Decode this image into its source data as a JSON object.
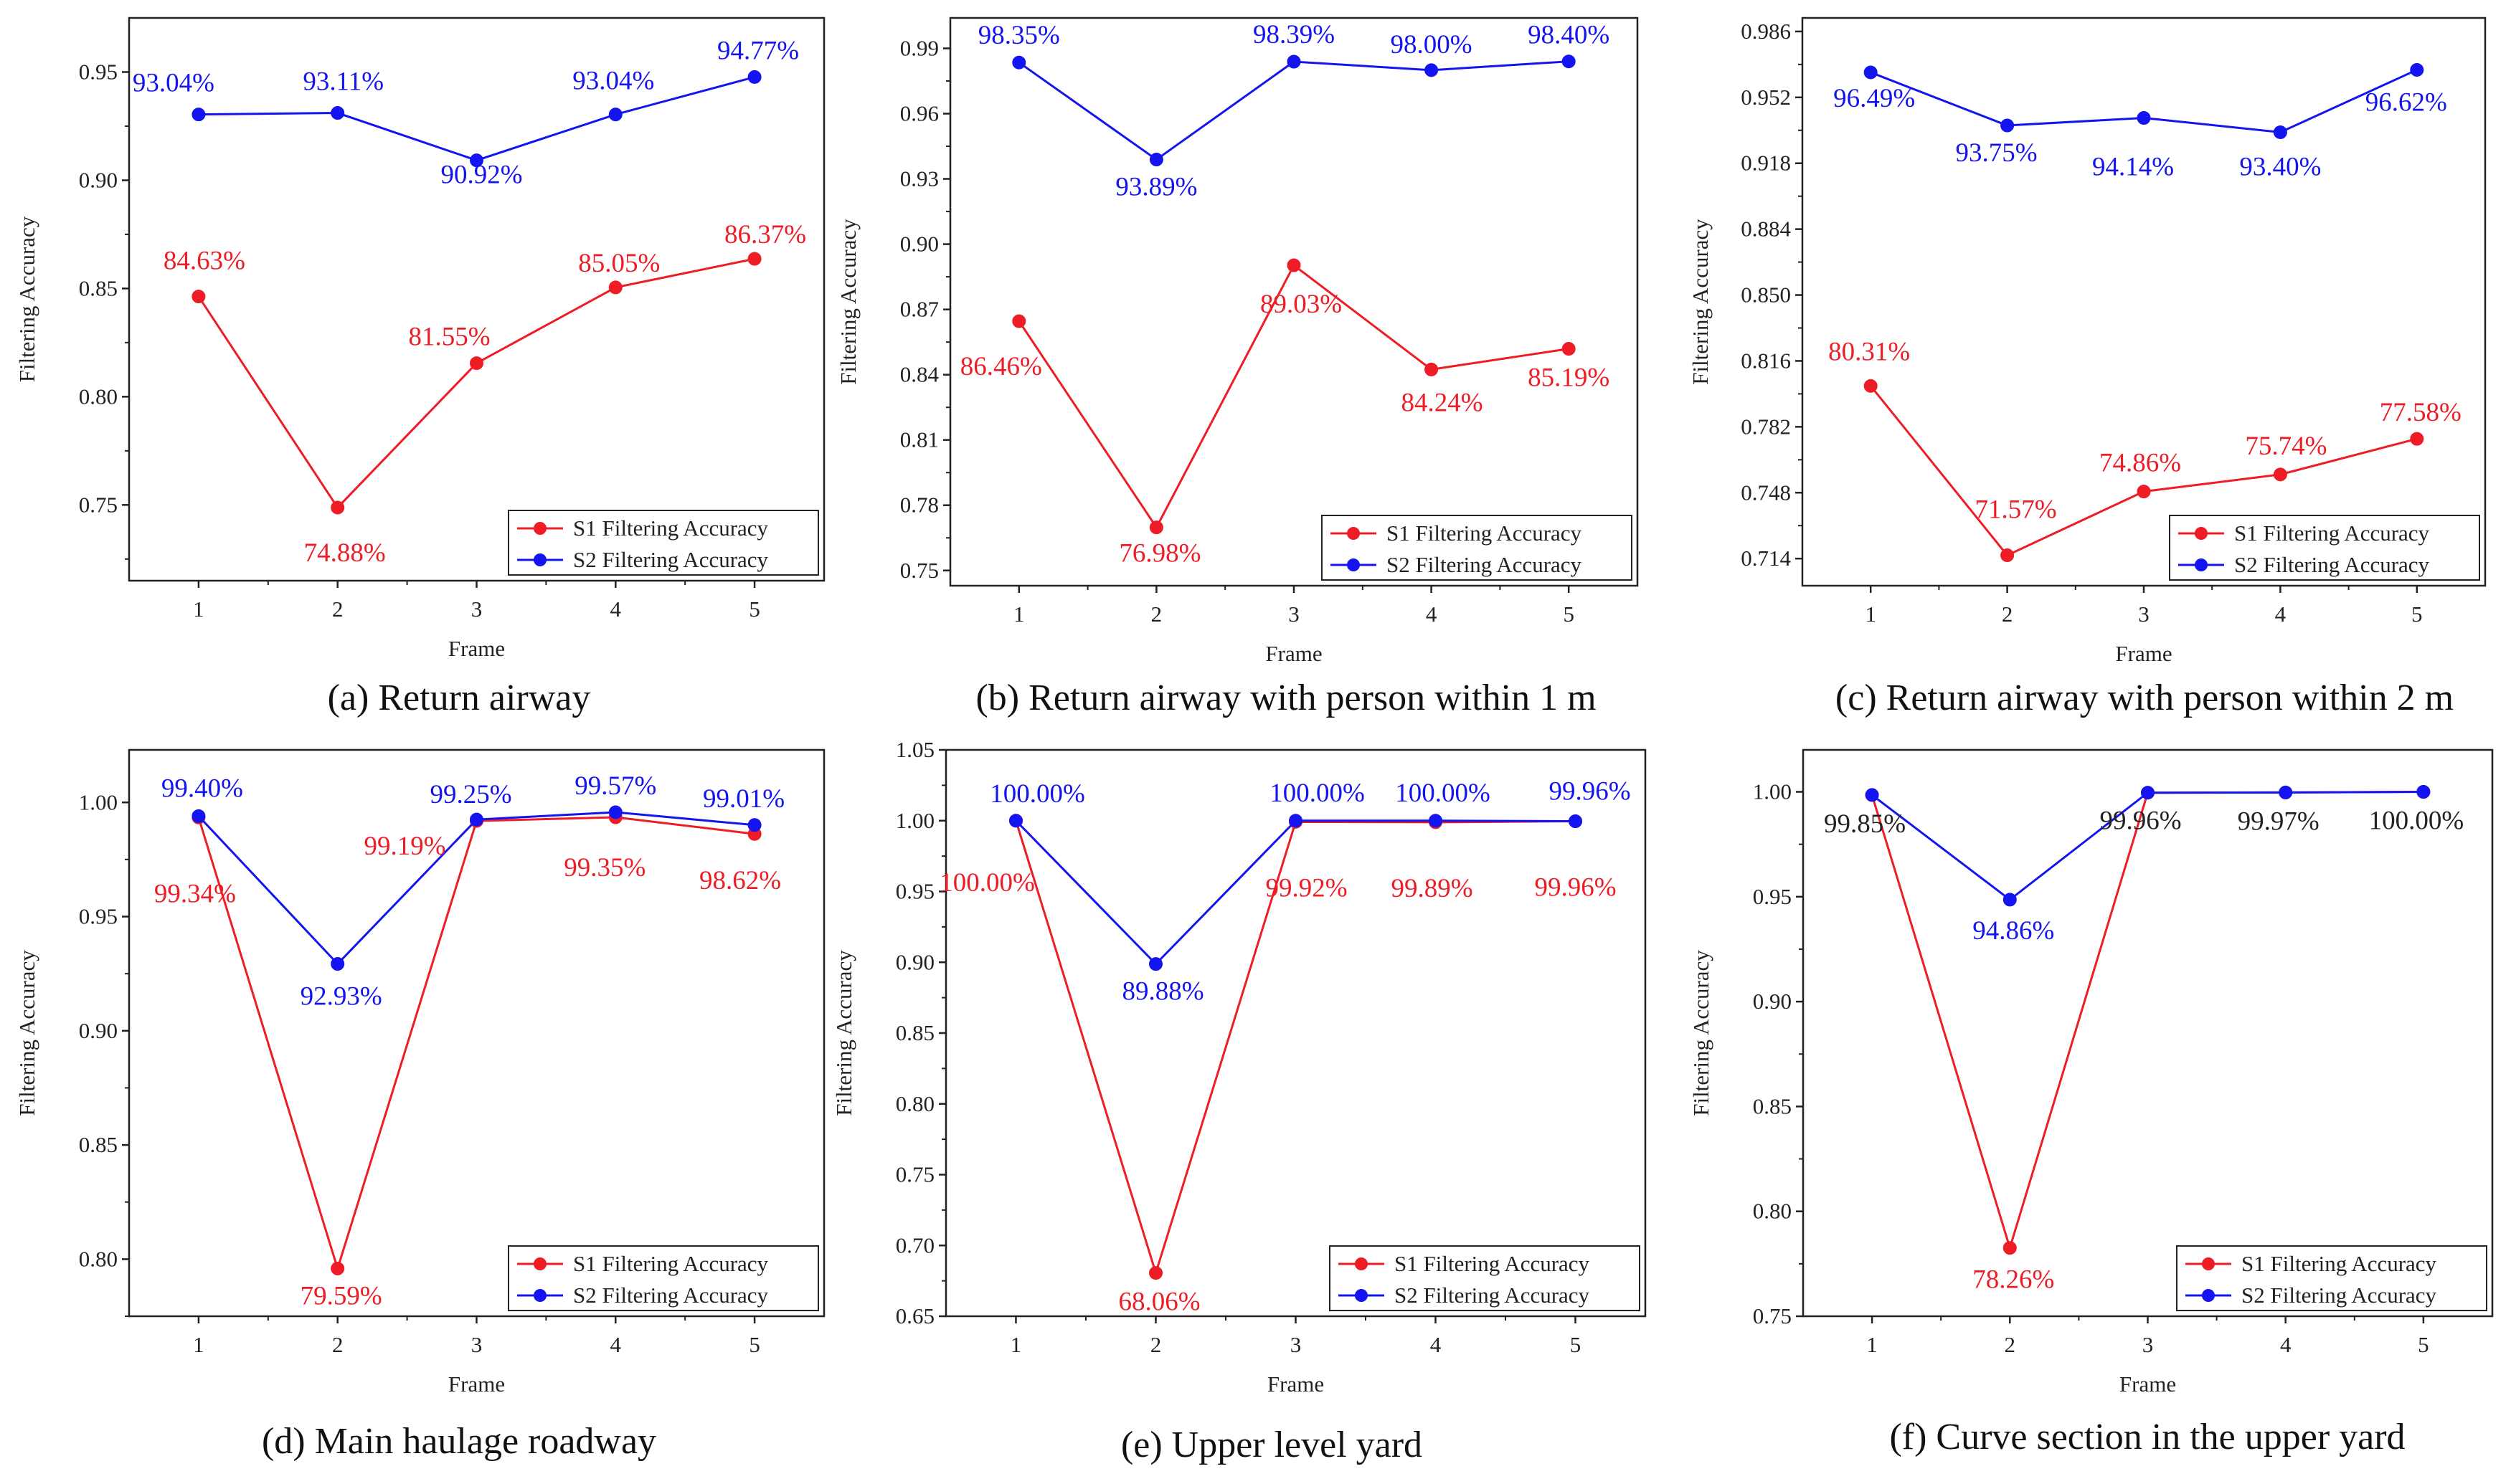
{
  "colors": {
    "s1": "#ee1c25",
    "s2": "#1414f0",
    "axis": "#222222"
  },
  "chart_data": [
    {
      "type": "line",
      "caption": "(a) Return airway",
      "xlabel": "Frame",
      "ylabel": "Filtering Accuracy",
      "x": [
        1,
        2,
        3,
        4,
        5
      ],
      "xticks": [
        "1",
        "2",
        "3",
        "4",
        "5"
      ],
      "ylim": [
        0.715,
        0.975
      ],
      "yticks": [
        "0.75",
        "0.80",
        "0.85",
        "0.90",
        "0.95"
      ],
      "ytick_values": [
        0.75,
        0.8,
        0.85,
        0.9,
        0.95
      ],
      "legend_position": "bottom-right",
      "series": [
        {
          "name": "S1 Filtering Accuracy",
          "color": "#ee1c25",
          "values": [
            0.8463,
            0.7488,
            0.8155,
            0.8505,
            0.8637
          ],
          "labels": [
            "84.63%",
            "74.88%",
            "81.55%",
            "85.05%",
            "86.37%"
          ]
        },
        {
          "name": "S2 Filtering Accuracy",
          "color": "#1414f0",
          "values": [
            0.9304,
            0.9311,
            0.9092,
            0.9304,
            0.9477
          ],
          "labels": [
            "93.04%",
            "93.11%",
            "90.92%",
            "93.04%",
            "94.77%"
          ]
        }
      ]
    },
    {
      "type": "line",
      "caption": "(b) Return airway with person within 1 m",
      "xlabel": "Frame",
      "ylabel": "Filtering Accuracy",
      "x": [
        1,
        2,
        3,
        4,
        5
      ],
      "xticks": [
        "1",
        "2",
        "3",
        "4",
        "5"
      ],
      "ylim": [
        0.743,
        1.004
      ],
      "yticks": [
        "0.75",
        "0.78",
        "0.81",
        "0.84",
        "0.87",
        "0.90",
        "0.93",
        "0.96",
        "0.99"
      ],
      "ytick_values": [
        0.75,
        0.78,
        0.81,
        0.84,
        0.87,
        0.9,
        0.93,
        0.96,
        0.99
      ],
      "legend_position": "bottom-right",
      "series": [
        {
          "name": "S1 Filtering Accuracy",
          "color": "#ee1c25",
          "values": [
            0.8646,
            0.7698,
            0.8903,
            0.8424,
            0.8519
          ],
          "labels": [
            "86.46%",
            "76.98%",
            "89.03%",
            "84.24%",
            "85.19%"
          ]
        },
        {
          "name": "S2 Filtering Accuracy",
          "color": "#1414f0",
          "values": [
            0.9835,
            0.9389,
            0.9839,
            0.98,
            0.984
          ],
          "labels": [
            "98.35%",
            "93.89%",
            "98.39%",
            "98.00%",
            "98.40%"
          ]
        }
      ]
    },
    {
      "type": "line",
      "caption": "(c) Return airway with person within 2 m",
      "xlabel": "Frame",
      "ylabel": "Filtering Accuracy",
      "x": [
        1,
        2,
        3,
        4,
        5
      ],
      "xticks": [
        "1",
        "2",
        "3",
        "4",
        "5"
      ],
      "ylim": [
        0.7,
        0.993
      ],
      "yticks": [
        "0.714",
        "0.748",
        "0.782",
        "0.816",
        "0.850",
        "0.884",
        "0.918",
        "0.952",
        "0.986"
      ],
      "ytick_values": [
        0.714,
        0.748,
        0.782,
        0.816,
        0.85,
        0.884,
        0.918,
        0.952,
        0.986
      ],
      "legend_position": "bottom-right",
      "series": [
        {
          "name": "S1 Filtering Accuracy",
          "color": "#ee1c25",
          "values": [
            0.8031,
            0.7157,
            0.7486,
            0.7574,
            0.7758
          ],
          "labels": [
            "80.31%",
            "71.57%",
            "74.86%",
            "75.74%",
            "77.58%"
          ]
        },
        {
          "name": "S2 Filtering Accuracy",
          "color": "#1414f0",
          "values": [
            0.9649,
            0.9375,
            0.9414,
            0.934,
            0.9662
          ],
          "labels": [
            "96.49%",
            "93.75%",
            "94.14%",
            "93.40%",
            "96.62%"
          ]
        }
      ]
    },
    {
      "type": "line",
      "caption": "(d) Main haulage roadway",
      "xlabel": "Frame",
      "ylabel": "Filtering Accuracy",
      "x": [
        1,
        2,
        3,
        4,
        5
      ],
      "xticks": [
        "1",
        "2",
        "3",
        "4",
        "5"
      ],
      "ylim": [
        0.775,
        1.023
      ],
      "yticks": [
        "0.80",
        "0.85",
        "0.90",
        "0.95",
        "1.00"
      ],
      "ytick_values": [
        0.8,
        0.85,
        0.9,
        0.95,
        1.0
      ],
      "legend_position": "bottom-right",
      "series": [
        {
          "name": "S1 Filtering Accuracy",
          "color": "#ee1c25",
          "values": [
            0.9934,
            0.7959,
            0.9919,
            0.9935,
            0.9862
          ],
          "labels": [
            "99.34%",
            "79.59%",
            "99.19%",
            "99.35%",
            "98.62%"
          ]
        },
        {
          "name": "S2 Filtering Accuracy",
          "color": "#1414f0",
          "values": [
            0.994,
            0.9293,
            0.9925,
            0.9957,
            0.9901
          ],
          "labels": [
            "99.40%",
            "92.93%",
            "99.25%",
            "99.57%",
            "99.01%"
          ]
        }
      ]
    },
    {
      "type": "line",
      "caption": "(e) Upper level yard",
      "xlabel": "Frame",
      "ylabel": "Filtering Accuracy",
      "x": [
        1,
        2,
        3,
        4,
        5
      ],
      "xticks": [
        "1",
        "2",
        "3",
        "4",
        "5"
      ],
      "ylim": [
        0.65,
        1.05
      ],
      "yticks": [
        "0.65",
        "0.70",
        "0.75",
        "0.80",
        "0.85",
        "0.90",
        "0.95",
        "1.00",
        "1.05"
      ],
      "ytick_values": [
        0.65,
        0.7,
        0.75,
        0.8,
        0.85,
        0.9,
        0.95,
        1.0,
        1.05
      ],
      "legend_position": "bottom-right",
      "series": [
        {
          "name": "S1 Filtering Accuracy",
          "color": "#ee1c25",
          "values": [
            1.0,
            0.6806,
            0.9992,
            0.9989,
            0.9996
          ],
          "labels": [
            "100.00%",
            "68.06%",
            "99.92%",
            "99.89%",
            "99.96%"
          ]
        },
        {
          "name": "S2 Filtering Accuracy",
          "color": "#1414f0",
          "values": [
            1.0,
            0.8988,
            1.0,
            1.0,
            0.9996
          ],
          "labels": [
            "100.00%",
            "89.88%",
            "100.00%",
            "100.00%",
            "99.96%"
          ]
        }
      ]
    },
    {
      "type": "line",
      "caption": "(f) Curve section in the upper yard",
      "xlabel": "Frame",
      "ylabel": "Filtering Accuracy",
      "x": [
        1,
        2,
        3,
        4,
        5
      ],
      "xticks": [
        "1",
        "2",
        "3",
        "4",
        "5"
      ],
      "ylim": [
        0.75,
        1.02
      ],
      "yticks": [
        "0.75",
        "0.80",
        "0.85",
        "0.90",
        "0.95",
        "1.00"
      ],
      "ytick_values": [
        0.75,
        0.8,
        0.85,
        0.9,
        0.95,
        1.0
      ],
      "legend_position": "bottom-right",
      "series": [
        {
          "name": "S1 Filtering Accuracy",
          "color": "#ee1c25",
          "values": [
            0.9985,
            0.7826,
            0.9996,
            0.9997,
            1.0
          ],
          "labels": [
            "",
            "78.26%",
            "",
            "",
            ""
          ]
        },
        {
          "name": "S2 Filtering Accuracy",
          "color": "#1414f0",
          "values": [
            0.9985,
            0.9486,
            0.9996,
            0.9997,
            1.0
          ],
          "labels": [
            "",
            "94.86%",
            "",
            "",
            ""
          ]
        }
      ],
      "shared_labels": [
        "99.85%",
        "",
        "99.96%",
        "99.97%",
        "100.00%"
      ]
    }
  ]
}
